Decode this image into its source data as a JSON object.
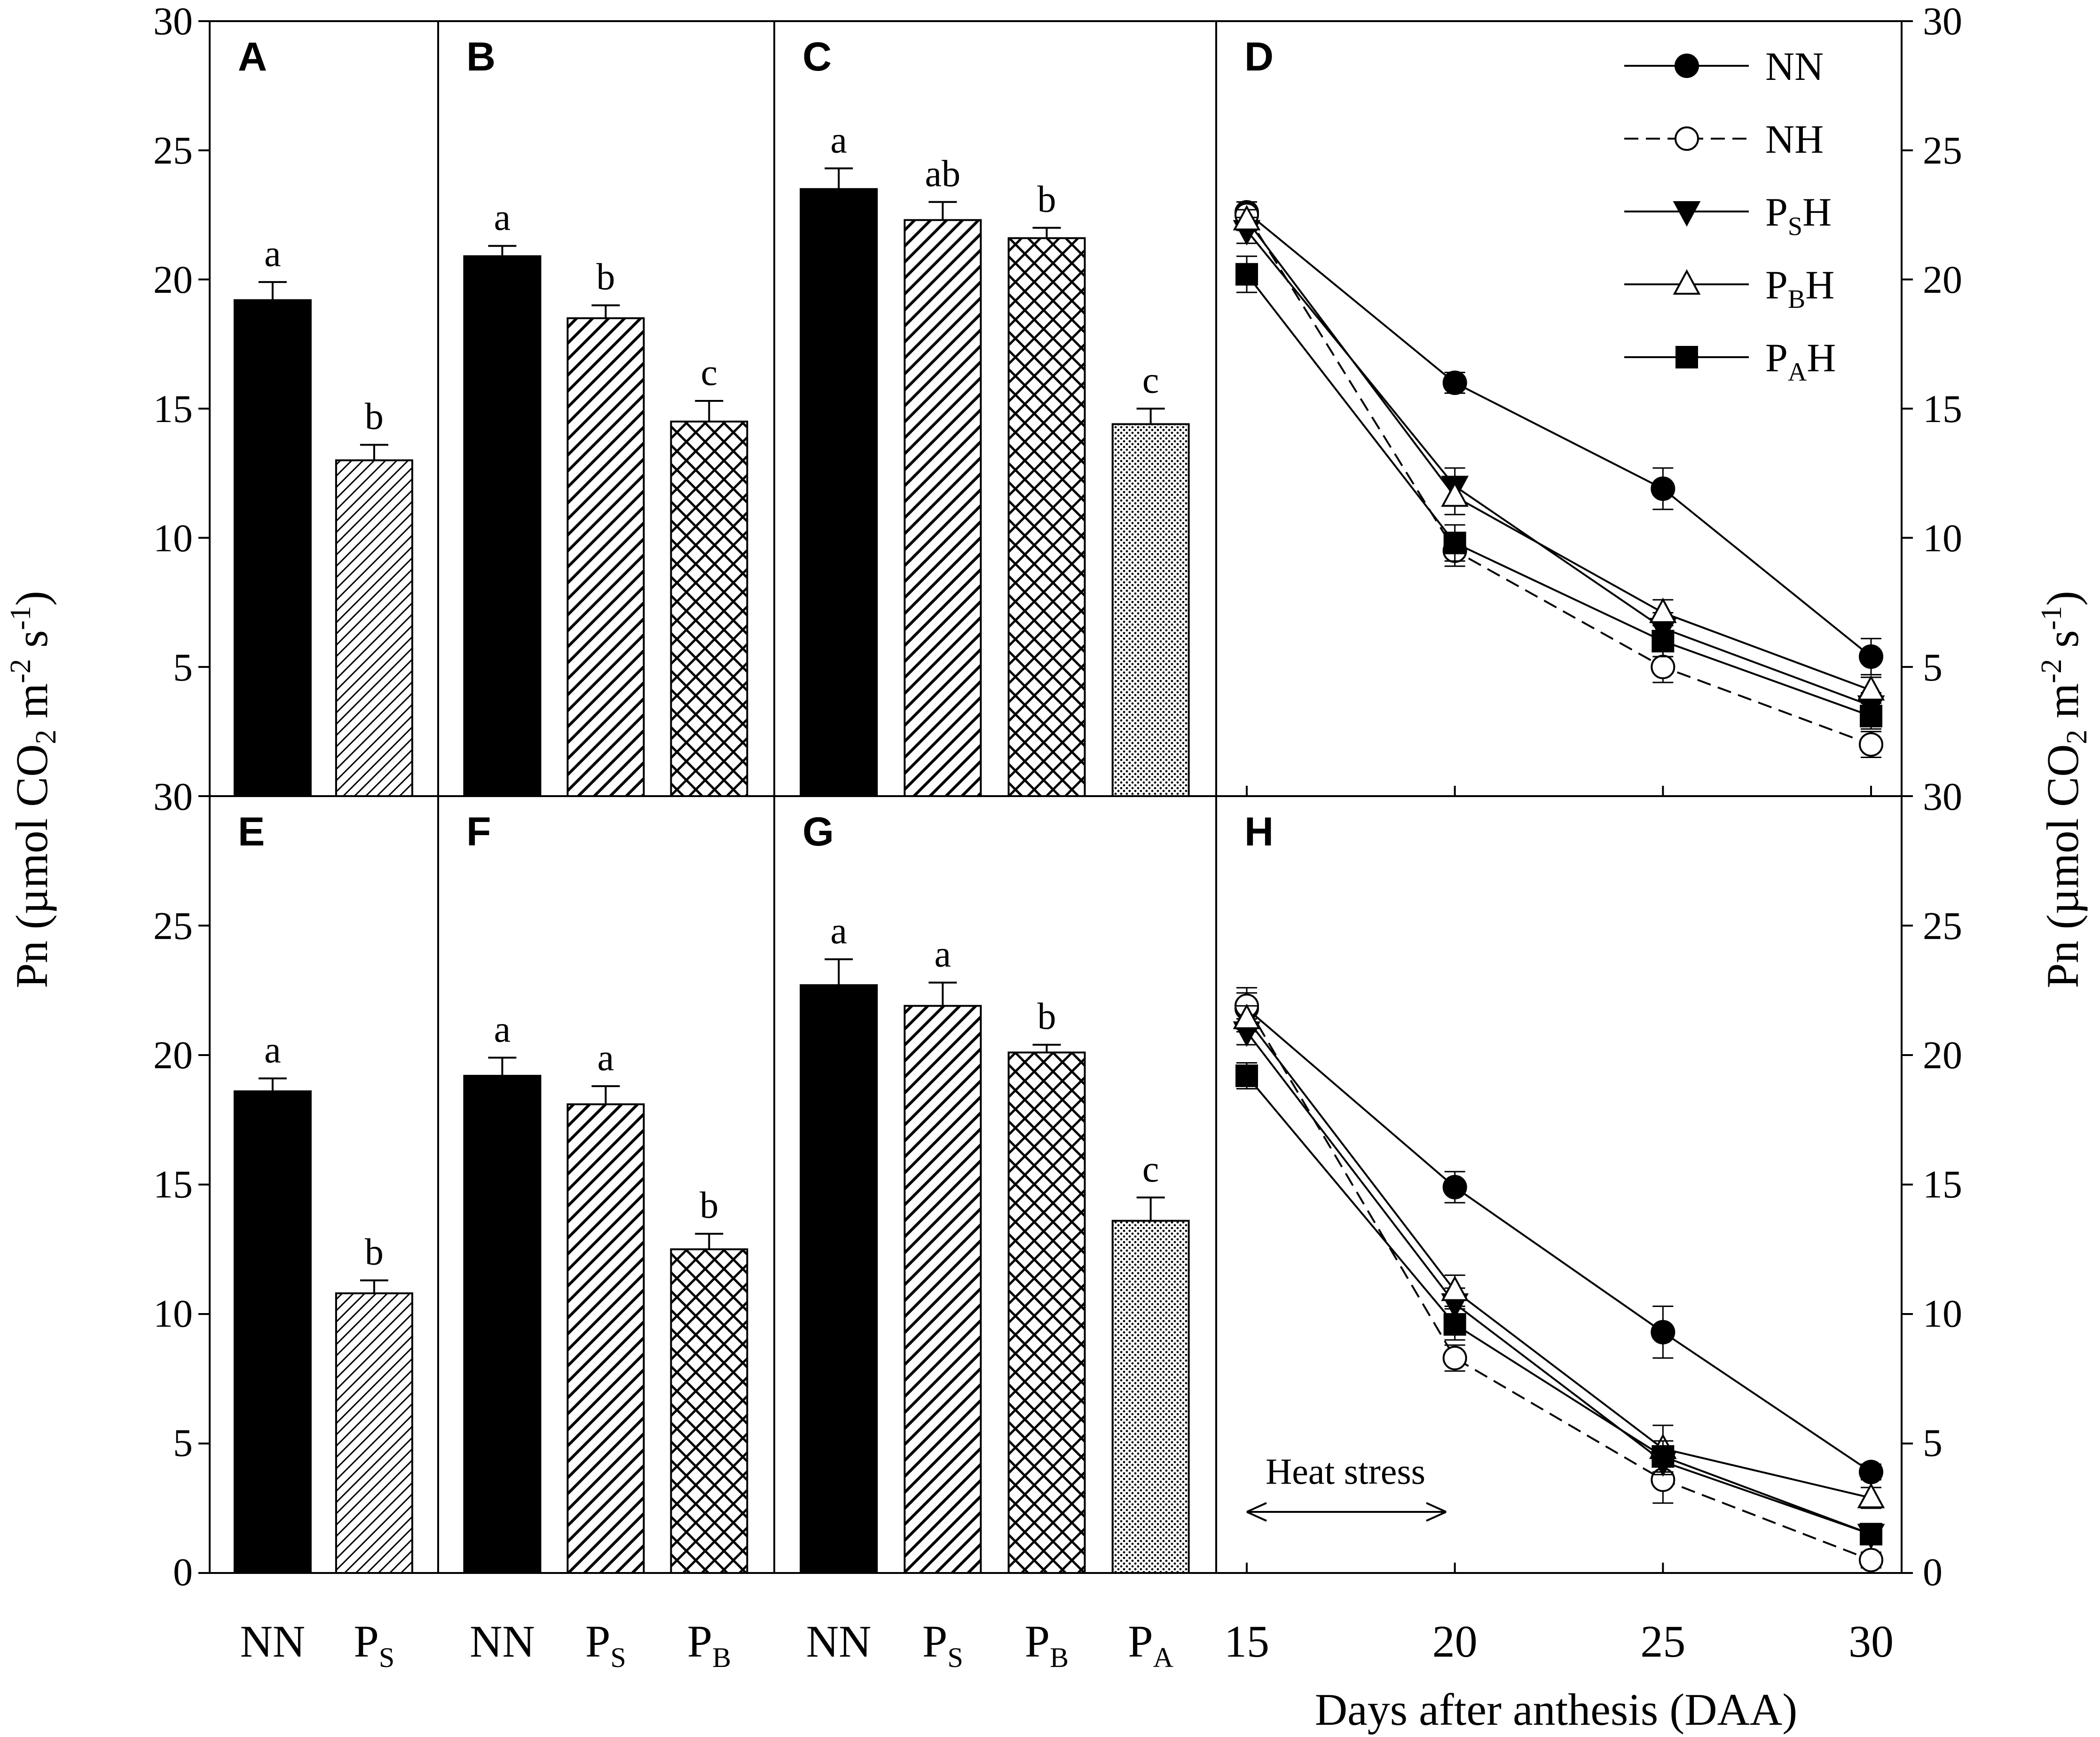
{
  "colors": {
    "ink": "#000000",
    "paper": "#ffffff"
  },
  "axis_ticks": {
    "left": [
      "30",
      "25",
      "20",
      "15",
      "10",
      "5",
      "30",
      "25",
      "20",
      "15",
      "10",
      "5",
      "0"
    ],
    "right": [
      "30",
      "25",
      "20",
      "15",
      "10",
      "5",
      "30",
      "25",
      "20",
      "15",
      "10",
      "5",
      "0"
    ]
  },
  "left_axis_label": {
    "main": "Pn (µmol CO",
    "sub2": "2",
    "m": " m",
    "sup1": "-2",
    "s": " s",
    "sup2": "-1",
    "close": ")"
  },
  "right_axis_label": {
    "main": "Pn (µmol CO",
    "sub2": "2",
    "m": " m",
    "sup1": "-2",
    "s": " s",
    "sup2": "-1",
    "close": ")"
  },
  "x_axis_title": "Days after anthesis (DAA)",
  "heat_stress_label": "Heat stress",
  "chart_data": [
    {
      "panel": "A",
      "type": "bar",
      "ylim": [
        0,
        30
      ],
      "categories": [
        {
          "base": "NN",
          "sub": ""
        },
        {
          "base": "P",
          "sub": "S"
        }
      ],
      "values": [
        19.2,
        13.0
      ],
      "errors": [
        0.7,
        0.6
      ],
      "patterns": [
        "solid",
        "diag-thin"
      ],
      "labels": [
        "a",
        "b"
      ]
    },
    {
      "panel": "B",
      "type": "bar",
      "ylim": [
        0,
        30
      ],
      "categories": [
        {
          "base": "NN",
          "sub": ""
        },
        {
          "base": "P",
          "sub": "S"
        },
        {
          "base": "P",
          "sub": "B"
        }
      ],
      "values": [
        20.9,
        18.5,
        14.5
      ],
      "errors": [
        0.4,
        0.5,
        0.8
      ],
      "patterns": [
        "solid",
        "diag",
        "cross"
      ],
      "labels": [
        "a",
        "b",
        "c"
      ]
    },
    {
      "panel": "C",
      "type": "bar",
      "ylim": [
        0,
        30
      ],
      "categories": [
        {
          "base": "NN",
          "sub": ""
        },
        {
          "base": "P",
          "sub": "S"
        },
        {
          "base": "P",
          "sub": "B"
        },
        {
          "base": "P",
          "sub": "A"
        }
      ],
      "values": [
        23.5,
        22.3,
        21.6,
        14.4
      ],
      "errors": [
        0.8,
        0.7,
        0.4,
        0.6
      ],
      "patterns": [
        "solid",
        "diag",
        "cross",
        "dots"
      ],
      "labels": [
        "a",
        "ab",
        "b",
        "c"
      ]
    },
    {
      "panel": "D",
      "type": "line",
      "ylim": [
        0,
        30
      ],
      "x": [
        15,
        20,
        25,
        30
      ],
      "series": [
        {
          "name": "NN",
          "base": "NN",
          "sub": "",
          "tail": "",
          "marker": "circle",
          "filled": true,
          "dashed": false,
          "values": [
            22.6,
            16.0,
            11.9,
            5.4
          ],
          "errors": [
            0.4,
            0.4,
            0.8,
            0.7
          ]
        },
        {
          "name": "NH",
          "base": "NH",
          "sub": "",
          "tail": "",
          "marker": "circle",
          "filled": false,
          "dashed": true,
          "values": [
            22.5,
            9.5,
            5.0,
            2.0
          ],
          "errors": [
            0.5,
            0.6,
            0.6,
            0.5
          ]
        },
        {
          "name": "PSH",
          "base": "P",
          "sub": "S",
          "tail": "H",
          "marker": "triangle-down",
          "filled": true,
          "dashed": false,
          "values": [
            21.9,
            12.0,
            6.5,
            3.5
          ],
          "errors": [
            0.5,
            0.7,
            0.6,
            0.5
          ]
        },
        {
          "name": "PBH",
          "base": "P",
          "sub": "B",
          "tail": "H",
          "marker": "triangle-up",
          "filled": false,
          "dashed": false,
          "values": [
            22.3,
            11.6,
            7.1,
            4.1
          ],
          "errors": [
            0.4,
            0.7,
            0.5,
            0.5
          ]
        },
        {
          "name": "PAH",
          "base": "P",
          "sub": "A",
          "tail": "H",
          "marker": "square",
          "filled": true,
          "dashed": false,
          "values": [
            20.2,
            9.8,
            6.0,
            3.1
          ],
          "errors": [
            0.7,
            0.7,
            0.6,
            0.5
          ]
        }
      ]
    },
    {
      "panel": "E",
      "type": "bar",
      "ylim": [
        0,
        30
      ],
      "categories": [
        {
          "base": "NN",
          "sub": ""
        },
        {
          "base": "P",
          "sub": "S"
        }
      ],
      "values": [
        18.6,
        10.8
      ],
      "errors": [
        0.5,
        0.5
      ],
      "patterns": [
        "solid",
        "diag-thin"
      ],
      "labels": [
        "a",
        "b"
      ]
    },
    {
      "panel": "F",
      "type": "bar",
      "ylim": [
        0,
        30
      ],
      "categories": [
        {
          "base": "NN",
          "sub": ""
        },
        {
          "base": "P",
          "sub": "S"
        },
        {
          "base": "P",
          "sub": "B"
        }
      ],
      "values": [
        19.2,
        18.1,
        12.5
      ],
      "errors": [
        0.7,
        0.7,
        0.6
      ],
      "patterns": [
        "solid",
        "diag",
        "cross"
      ],
      "labels": [
        "a",
        "a",
        "b"
      ]
    },
    {
      "panel": "G",
      "type": "bar",
      "ylim": [
        0,
        30
      ],
      "categories": [
        {
          "base": "NN",
          "sub": ""
        },
        {
          "base": "P",
          "sub": "S"
        },
        {
          "base": "P",
          "sub": "B"
        },
        {
          "base": "P",
          "sub": "A"
        }
      ],
      "values": [
        22.7,
        21.9,
        20.1,
        13.6
      ],
      "errors": [
        1.0,
        0.9,
        0.3,
        0.9
      ],
      "patterns": [
        "solid",
        "diag",
        "cross",
        "dots"
      ],
      "labels": [
        "a",
        "a",
        "b",
        "c"
      ]
    },
    {
      "panel": "H",
      "type": "line",
      "ylim": [
        0,
        30
      ],
      "x": [
        15,
        20,
        25,
        30
      ],
      "xlabel": "Days after anthesis (DAA)",
      "series": [
        {
          "name": "NN",
          "marker": "circle",
          "filled": true,
          "dashed": false,
          "values": [
            21.8,
            14.9,
            9.3,
            3.9
          ],
          "errors": [
            0.8,
            0.6,
            1.0,
            0.3
          ]
        },
        {
          "name": "NH",
          "marker": "circle",
          "filled": false,
          "dashed": true,
          "values": [
            21.9,
            8.3,
            3.6,
            0.5
          ],
          "errors": [
            0.5,
            0.5,
            0.9,
            0.3
          ]
        },
        {
          "name": "PSH",
          "marker": "triangle-down",
          "filled": true,
          "dashed": false,
          "values": [
            20.9,
            10.4,
            4.3,
            1.5
          ],
          "errors": [
            0.5,
            0.6,
            0.5,
            0.3
          ]
        },
        {
          "name": "PBH",
          "marker": "triangle-up",
          "filled": false,
          "dashed": false,
          "values": [
            21.4,
            10.9,
            4.8,
            2.9
          ],
          "errors": [
            0.5,
            0.6,
            0.9,
            0.4
          ]
        },
        {
          "name": "PAH",
          "marker": "square",
          "filled": true,
          "dashed": false,
          "values": [
            19.2,
            9.6,
            4.5,
            1.5
          ],
          "errors": [
            0.5,
            0.6,
            0.6,
            0.4
          ]
        }
      ]
    }
  ]
}
